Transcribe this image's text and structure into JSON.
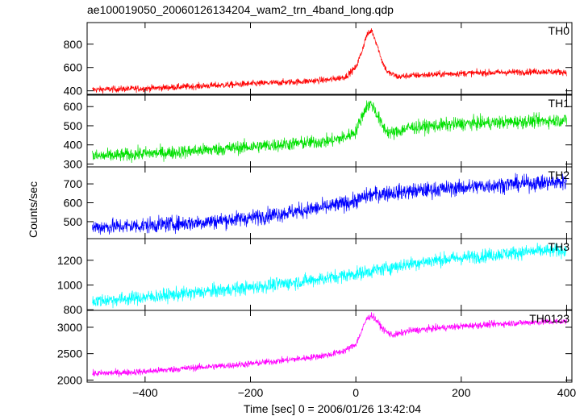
{
  "chart_data": {
    "type": "line",
    "title": "ae100019050_20060126134204_wam2_trn_4band_long.qdp",
    "xlabel": "Time [sec] 0 = 2006/01/26 13:42:04",
    "ylabel": "Counts/sec",
    "xlim": [
      -510,
      410
    ],
    "x_ticks": [
      -400,
      -200,
      0,
      200,
      400
    ],
    "grid": false,
    "panels": [
      {
        "name": "TH0",
        "color": "#ff0000",
        "ylim": [
          370,
          985
        ],
        "y_ticks": [
          400,
          600,
          800
        ],
        "series": {
          "x": [
            -500,
            -450,
            -400,
            -350,
            -300,
            -250,
            -200,
            -150,
            -100,
            -50,
            -20,
            0,
            10,
            20,
            30,
            40,
            50,
            60,
            70,
            80,
            100,
            150,
            200,
            250,
            300,
            350,
            400
          ],
          "y": [
            410,
            415,
            420,
            430,
            440,
            450,
            460,
            470,
            480,
            495,
            520,
            600,
            720,
            870,
            920,
            800,
            650,
            560,
            540,
            520,
            530,
            540,
            550,
            555,
            560,
            565,
            560
          ]
        },
        "noise": 20
      },
      {
        "name": "TH1",
        "color": "#00e000",
        "ylim": [
          285,
          660
        ],
        "y_ticks": [
          300,
          400,
          500,
          600
        ],
        "series": {
          "x": [
            -500,
            -450,
            -400,
            -350,
            -300,
            -250,
            -200,
            -150,
            -100,
            -50,
            -20,
            0,
            10,
            20,
            30,
            40,
            50,
            60,
            70,
            80,
            100,
            150,
            200,
            250,
            300,
            350,
            400
          ],
          "y": [
            340,
            345,
            355,
            360,
            370,
            380,
            390,
            400,
            410,
            420,
            440,
            470,
            540,
            600,
            615,
            560,
            500,
            470,
            460,
            470,
            490,
            500,
            510,
            515,
            520,
            525,
            530
          ]
        },
        "noise": 25
      },
      {
        "name": "TH2",
        "color": "#0000ff",
        "ylim": [
          410,
          790
        ],
        "y_ticks": [
          500,
          600,
          700
        ],
        "series": {
          "x": [
            -500,
            -400,
            -300,
            -200,
            -100,
            -50,
            0,
            25,
            50,
            100,
            150,
            200,
            250,
            300,
            350,
            400
          ],
          "y": [
            470,
            480,
            495,
            520,
            560,
            580,
            610,
            640,
            650,
            660,
            670,
            680,
            690,
            700,
            705,
            710
          ]
        },
        "noise": 30
      },
      {
        "name": "TH3",
        "color": "#00ffff",
        "ylim": [
          795,
          1375
        ],
        "y_ticks": [
          800,
          1000,
          1200
        ],
        "series": {
          "x": [
            -500,
            -400,
            -300,
            -200,
            -100,
            0,
            50,
            100,
            150,
            200,
            250,
            300,
            350,
            400
          ],
          "y": [
            870,
            900,
            940,
            980,
            1030,
            1090,
            1130,
            1170,
            1200,
            1220,
            1240,
            1260,
            1275,
            1280
          ]
        },
        "noise": 40
      },
      {
        "name": "TH0123",
        "color": "#ff00ff",
        "ylim": [
          1960,
          3320
        ],
        "y_ticks": [
          2000,
          2500,
          3000
        ],
        "series": {
          "x": [
            -500,
            -450,
            -400,
            -350,
            -300,
            -250,
            -200,
            -150,
            -100,
            -50,
            -20,
            0,
            10,
            20,
            30,
            40,
            50,
            60,
            70,
            80,
            100,
            150,
            200,
            250,
            300,
            350,
            400
          ],
          "y": [
            2120,
            2140,
            2160,
            2200,
            2240,
            2270,
            2310,
            2360,
            2410,
            2480,
            2560,
            2680,
            2900,
            3150,
            3230,
            3120,
            2980,
            2900,
            2850,
            2870,
            2930,
            2980,
            3020,
            3050,
            3080,
            3100,
            3110
          ]
        },
        "noise": 45
      }
    ]
  }
}
